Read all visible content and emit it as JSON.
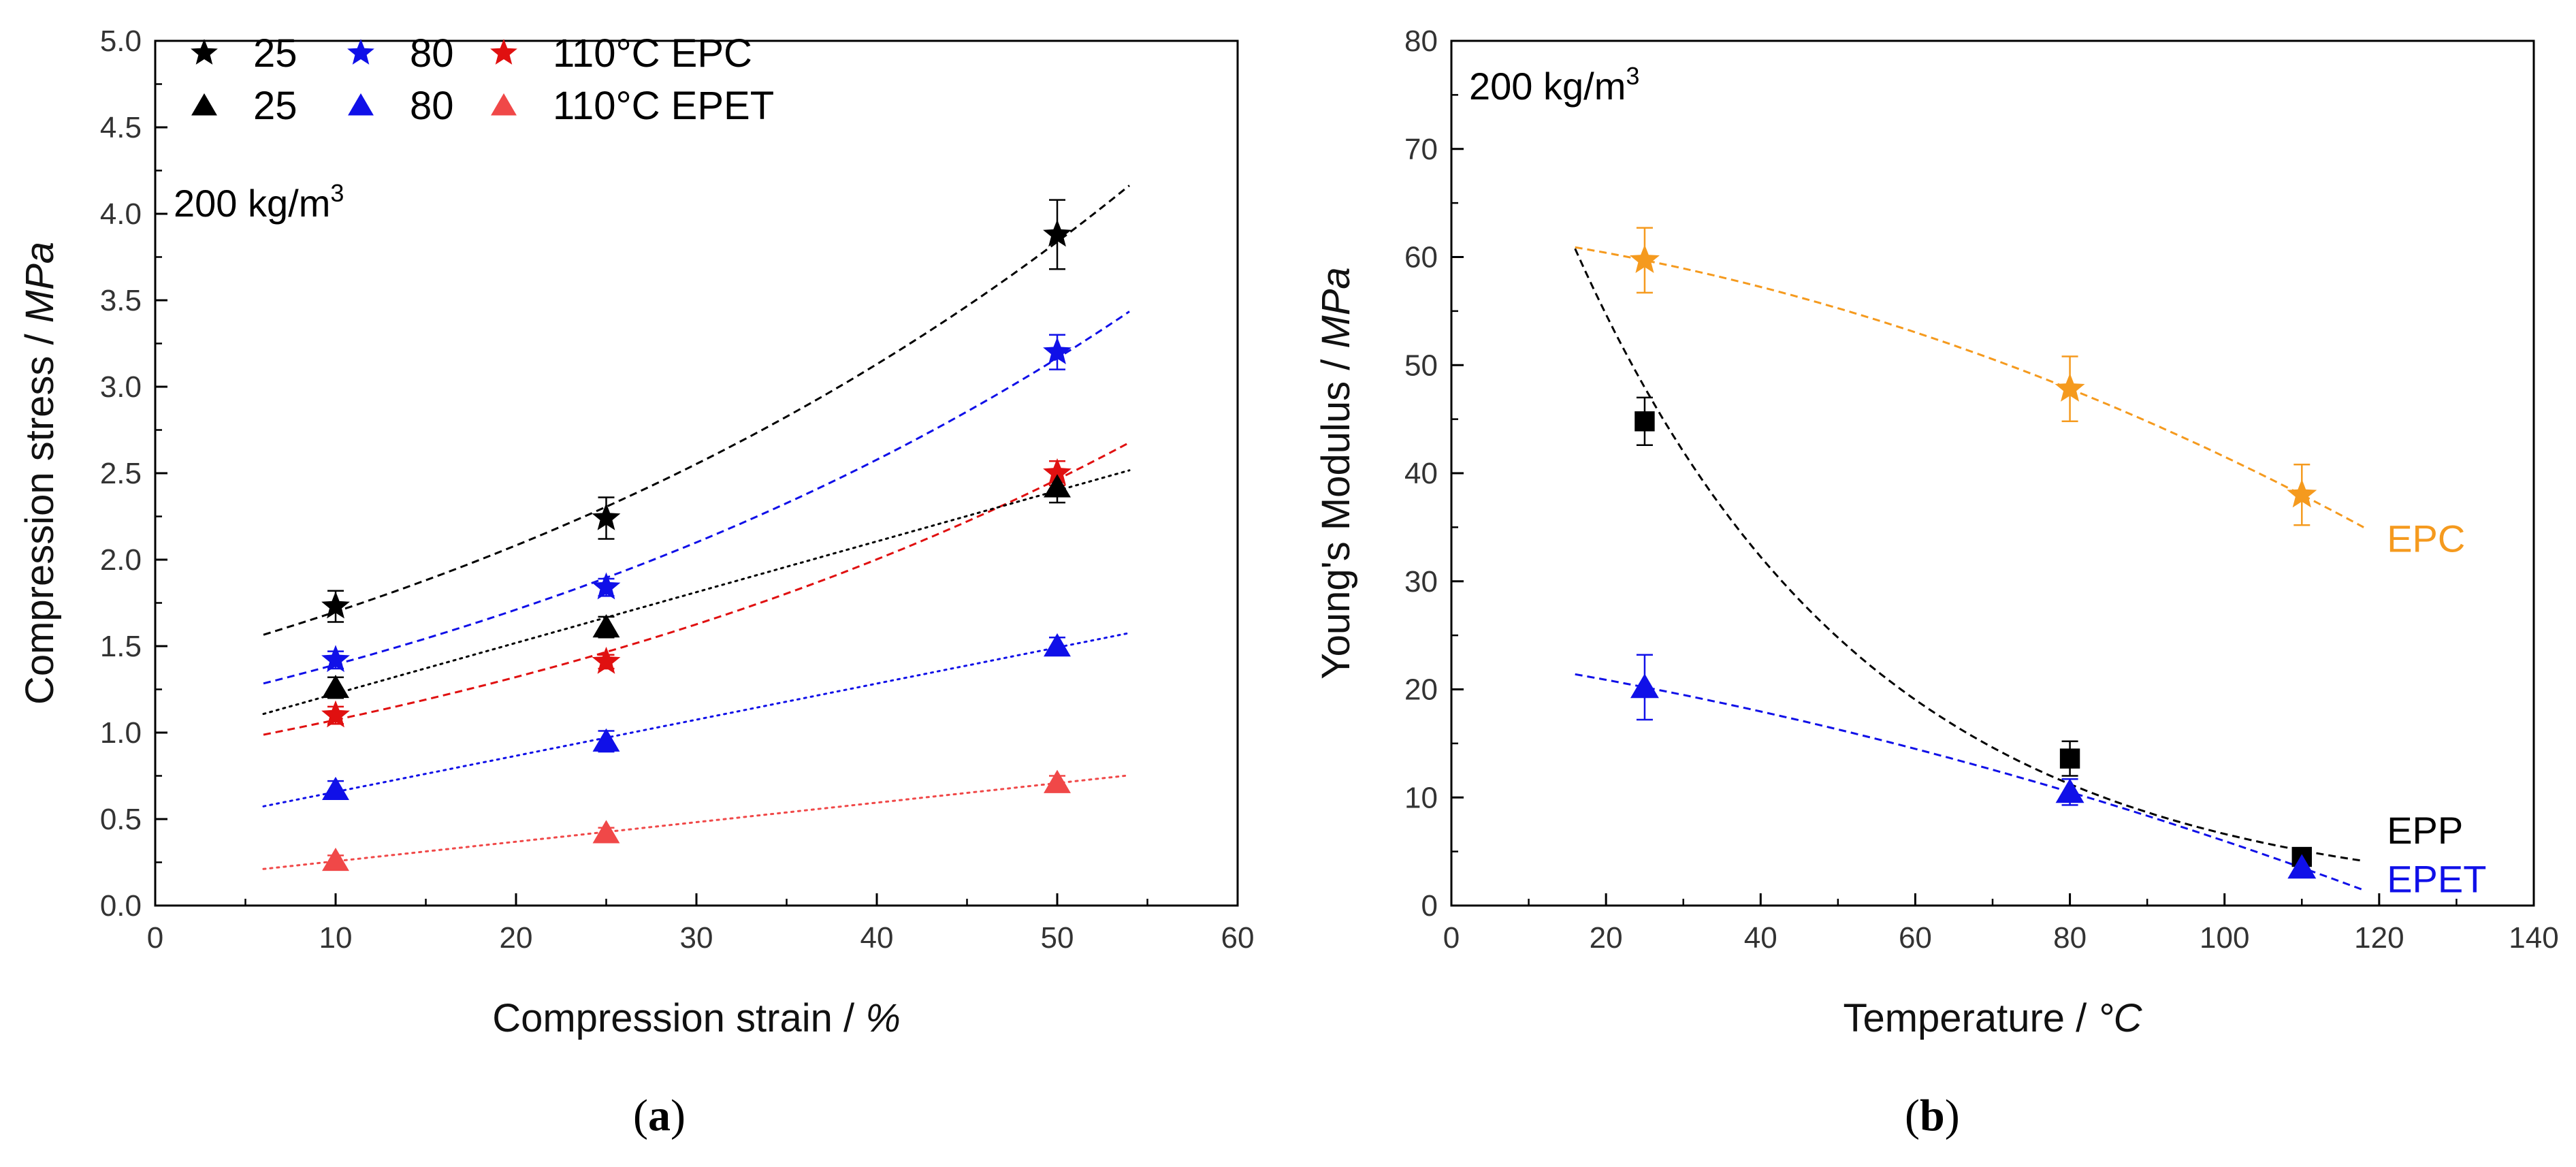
{
  "figure": {
    "panels": [
      {
        "label_open": "(",
        "label_letter": "a",
        "label_close": ")"
      },
      {
        "label_open": "(",
        "label_letter": "b",
        "label_close": ")"
      }
    ]
  },
  "colors": {
    "black": "#000000",
    "blue": "#1010e8",
    "red": "#e01010",
    "lightred": "#f04848",
    "orange": "#f59a1e"
  },
  "chart_data": [
    {
      "type": "scatter",
      "title": "",
      "annotation": {
        "base": "200 kg/m",
        "sup": "3"
      },
      "xlabel": {
        "text": "Compression strain  /  ",
        "unit": "%"
      },
      "ylabel": {
        "text": "Compression stress  /  ",
        "unit": "MPa"
      },
      "xlim": [
        0,
        60
      ],
      "ylim": [
        0,
        5
      ],
      "xticks": [
        0,
        10,
        20,
        30,
        40,
        50,
        60
      ],
      "yticks": [
        0.0,
        0.5,
        1.0,
        1.5,
        2.0,
        2.5,
        3.0,
        3.5,
        4.0,
        4.5,
        5.0
      ],
      "ytick_labels": [
        "0.0",
        "0.5",
        "1.0",
        "1.5",
        "2.0",
        "2.5",
        "3.0",
        "3.5",
        "4.0",
        "4.5",
        "5.0"
      ],
      "legend": {
        "placement": "top-left",
        "rows": [
          {
            "entries": [
              "25",
              "80",
              "110°C"
            ],
            "suffix": "EPC",
            "marker": "star"
          },
          {
            "entries": [
              "25",
              "80",
              "110°C"
            ],
            "suffix": "EPET",
            "marker": "triangle"
          }
        ]
      },
      "series": [
        {
          "name": "EPC 25",
          "marker": "star",
          "color": "black",
          "line": "dashed",
          "x": [
            10,
            25,
            50
          ],
          "y": [
            1.73,
            2.24,
            3.88
          ],
          "err": [
            0.09,
            0.12,
            0.2
          ],
          "fit": {
            "model": "exp",
            "x_range": [
              6,
              54
            ]
          }
        },
        {
          "name": "EPC 80",
          "marker": "star",
          "color": "blue",
          "line": "dashed",
          "x": [
            10,
            25,
            50
          ],
          "y": [
            1.42,
            1.84,
            3.2
          ],
          "err": [
            0.05,
            0.05,
            0.1
          ],
          "fit": {
            "model": "exp",
            "x_range": [
              6,
              54
            ]
          }
        },
        {
          "name": "EPC 110°C",
          "marker": "star",
          "color": "red",
          "line": "dashed",
          "x": [
            10,
            25,
            50
          ],
          "y": [
            1.1,
            1.41,
            2.5
          ],
          "err": [
            0.05,
            0.04,
            0.07
          ],
          "fit": {
            "model": "exp",
            "x_range": [
              6,
              54
            ]
          }
        },
        {
          "name": "EPET 25",
          "marker": "triangle",
          "color": "black",
          "line": "dotted",
          "x": [
            10,
            25,
            50
          ],
          "y": [
            1.26,
            1.61,
            2.42
          ],
          "err": [
            0.06,
            0.06,
            0.09
          ],
          "fit": {
            "model": "linear",
            "x_range": [
              6,
              54
            ]
          }
        },
        {
          "name": "EPET 80",
          "marker": "triangle",
          "color": "blue",
          "line": "dotted",
          "x": [
            10,
            25,
            50
          ],
          "y": [
            0.67,
            0.95,
            1.5
          ],
          "err": [
            0.05,
            0.06,
            0.05
          ],
          "fit": {
            "model": "linear",
            "x_range": [
              6,
              54
            ]
          }
        },
        {
          "name": "EPET 110°C",
          "marker": "triangle",
          "color": "lightred",
          "line": "dotted",
          "x": [
            10,
            25,
            50
          ],
          "y": [
            0.26,
            0.42,
            0.71
          ],
          "err": [
            0.03,
            0.03,
            0.04
          ],
          "fit": {
            "model": "linear",
            "x_range": [
              6,
              54
            ]
          }
        }
      ]
    },
    {
      "type": "scatter",
      "title": "",
      "annotation": {
        "base": "200 kg/m",
        "sup": "3"
      },
      "xlabel": {
        "text": "Temperature  /  ",
        "unit": "°C"
      },
      "ylabel": {
        "text": "Young's Modulus  /  ",
        "unit": "MPa"
      },
      "xlim": [
        0,
        140
      ],
      "ylim": [
        0,
        80
      ],
      "xticks": [
        0,
        20,
        40,
        60,
        80,
        100,
        120,
        140
      ],
      "yticks": [
        0,
        10,
        20,
        30,
        40,
        50,
        60,
        70,
        80
      ],
      "ytick_labels": [
        "0",
        "10",
        "20",
        "30",
        "40",
        "50",
        "60",
        "70",
        "80"
      ],
      "series": [
        {
          "name": "EPC",
          "marker": "star",
          "color": "orange",
          "line": "dashed",
          "x": [
            25,
            80,
            110
          ],
          "y": [
            59.7,
            47.8,
            38.0
          ],
          "err": [
            3.0,
            3.0,
            2.8
          ],
          "fit": {
            "model": "quadratic",
            "x_range": [
              16,
              118
            ]
          },
          "label": "EPC",
          "label_anchor": [
            121,
            34
          ]
        },
        {
          "name": "EPP",
          "marker": "square",
          "color": "black",
          "line": "dashed",
          "x": [
            25,
            80,
            110
          ],
          "y": [
            44.8,
            13.6,
            4.5
          ],
          "err": [
            2.2,
            1.6,
            0.8
          ],
          "fit": {
            "model": "exp",
            "x_range": [
              16,
              118
            ]
          },
          "label": "EPP",
          "label_anchor": [
            121,
            7
          ]
        },
        {
          "name": "EPET",
          "marker": "triangle",
          "color": "blue",
          "line": "dashed",
          "x": [
            25,
            80,
            110
          ],
          "y": [
            20.2,
            10.5,
            3.5
          ],
          "err": [
            3.0,
            1.2,
            0.8
          ],
          "fit": {
            "model": "quadratic",
            "x_range": [
              16,
              118
            ]
          },
          "label": "EPET",
          "label_anchor": [
            121,
            2.5
          ]
        }
      ]
    }
  ]
}
